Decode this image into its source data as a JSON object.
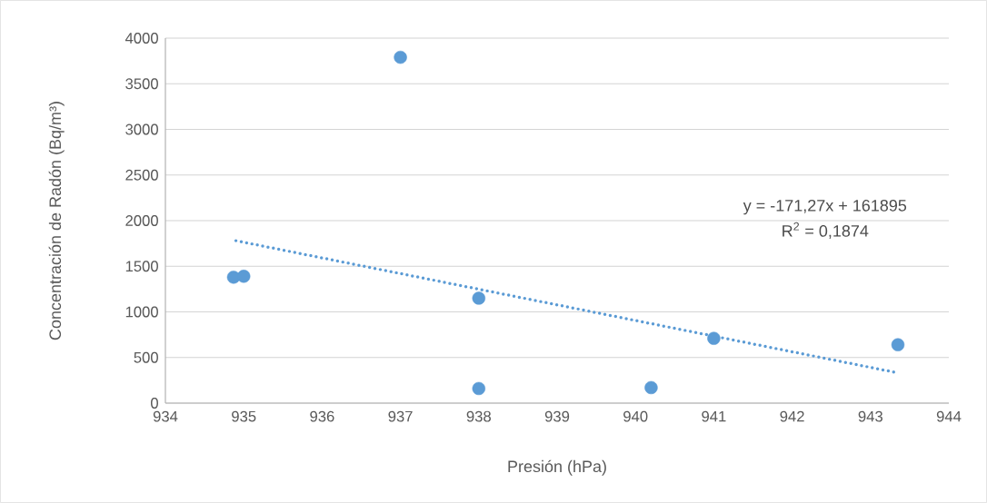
{
  "chart_data": {
    "type": "scatter",
    "xlabel": "Presión (hPa)",
    "ylabel": "Concentración de Radón (Bq/m³)",
    "xlim": [
      934,
      944
    ],
    "xticks": [
      934,
      935,
      936,
      937,
      938,
      939,
      940,
      941,
      942,
      943,
      944
    ],
    "ylim": [
      0,
      4000
    ],
    "yticks": [
      0,
      500,
      1000,
      1500,
      2000,
      2500,
      3000,
      3500,
      4000
    ],
    "grid": "y",
    "series": [
      {
        "type": "scatter",
        "color": "#5b9bd5",
        "marker": "circle",
        "x": [
          934.87,
          935.0,
          937.0,
          938.0,
          938.0,
          940.2,
          941.0,
          943.35
        ],
        "values": [
          1380,
          1390,
          3790,
          1150,
          160,
          170,
          710,
          640
        ]
      },
      {
        "type": "line",
        "color": "#5b9bd5",
        "marker": "none",
        "line_style": "dotted",
        "x": [
          934.9,
          943.3
        ],
        "values": [
          1780,
          340
        ]
      }
    ],
    "annotations": [
      "y = -171,27x + 161895",
      "R$^{2}$ = 0,1874"
    ]
  }
}
